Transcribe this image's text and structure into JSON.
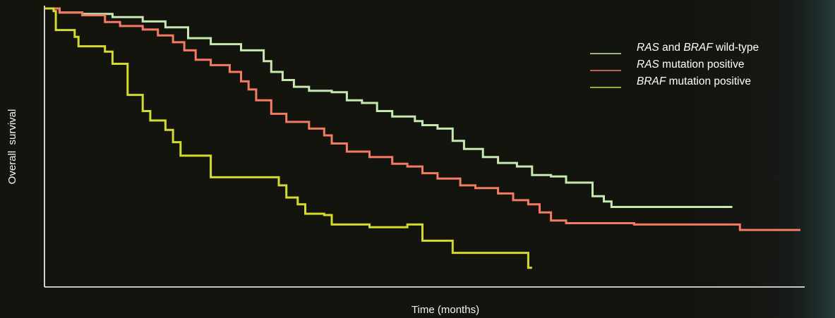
{
  "chart_data": {
    "type": "line",
    "subtype": "kaplan-meier-step",
    "xlabel": "Time (months)",
    "ylabel": "Overall  survival",
    "tick_labels_shown": false,
    "xlim": [
      0,
      1
    ],
    "ylim": [
      0,
      1
    ],
    "grid": false,
    "legend_position": "top-right",
    "series": [
      {
        "name": "RAS and BRAF wild-type",
        "legend_parts": [
          {
            "text": "RAS",
            "italic": true
          },
          {
            "text": " and  ",
            "italic": false
          },
          {
            "text": "BRAF",
            "italic": true
          },
          {
            "text": " wild-type",
            "italic": false
          }
        ],
        "color": "#c5e8b0",
        "points": [
          [
            0.0,
            1.0
          ],
          [
            0.02,
            0.985
          ],
          [
            0.05,
            0.98
          ],
          [
            0.09,
            0.968
          ],
          [
            0.13,
            0.952
          ],
          [
            0.16,
            0.93
          ],
          [
            0.19,
            0.89
          ],
          [
            0.22,
            0.868
          ],
          [
            0.26,
            0.845
          ],
          [
            0.29,
            0.805
          ],
          [
            0.3,
            0.765
          ],
          [
            0.315,
            0.735
          ],
          [
            0.33,
            0.71
          ],
          [
            0.35,
            0.695
          ],
          [
            0.38,
            0.69
          ],
          [
            0.4,
            0.66
          ],
          [
            0.42,
            0.65
          ],
          [
            0.44,
            0.62
          ],
          [
            0.46,
            0.6
          ],
          [
            0.49,
            0.583
          ],
          [
            0.5,
            0.568
          ],
          [
            0.52,
            0.555
          ],
          [
            0.54,
            0.51
          ],
          [
            0.555,
            0.48
          ],
          [
            0.58,
            0.45
          ],
          [
            0.6,
            0.428
          ],
          [
            0.625,
            0.415
          ],
          [
            0.645,
            0.383
          ],
          [
            0.67,
            0.378
          ],
          [
            0.69,
            0.355
          ],
          [
            0.725,
            0.305
          ],
          [
            0.74,
            0.285
          ],
          [
            0.75,
            0.265
          ],
          [
            0.91,
            0.265
          ]
        ]
      },
      {
        "name": "RAS mutation positive",
        "legend_parts": [
          {
            "text": "RAS",
            "italic": true
          },
          {
            "text": " mutation positive",
            "italic": false
          }
        ],
        "color": "#f47a63",
        "points": [
          [
            0.0,
            1.0
          ],
          [
            0.02,
            0.985
          ],
          [
            0.05,
            0.975
          ],
          [
            0.08,
            0.95
          ],
          [
            0.1,
            0.935
          ],
          [
            0.13,
            0.922
          ],
          [
            0.15,
            0.9
          ],
          [
            0.17,
            0.875
          ],
          [
            0.185,
            0.845
          ],
          [
            0.2,
            0.81
          ],
          [
            0.22,
            0.79
          ],
          [
            0.245,
            0.765
          ],
          [
            0.26,
            0.73
          ],
          [
            0.27,
            0.7
          ],
          [
            0.28,
            0.66
          ],
          [
            0.3,
            0.61
          ],
          [
            0.32,
            0.58
          ],
          [
            0.35,
            0.555
          ],
          [
            0.37,
            0.53
          ],
          [
            0.38,
            0.5
          ],
          [
            0.4,
            0.47
          ],
          [
            0.43,
            0.45
          ],
          [
            0.46,
            0.425
          ],
          [
            0.48,
            0.415
          ],
          [
            0.5,
            0.39
          ],
          [
            0.52,
            0.37
          ],
          [
            0.55,
            0.345
          ],
          [
            0.57,
            0.335
          ],
          [
            0.6,
            0.315
          ],
          [
            0.62,
            0.29
          ],
          [
            0.64,
            0.275
          ],
          [
            0.655,
            0.245
          ],
          [
            0.67,
            0.215
          ],
          [
            0.69,
            0.205
          ],
          [
            0.78,
            0.2
          ],
          [
            0.9,
            0.2
          ],
          [
            0.92,
            0.18
          ],
          [
            1.0,
            0.18
          ]
        ]
      },
      {
        "name": "BRAF mutation positive",
        "legend_parts": [
          {
            "text": "BRAF",
            "italic": true
          },
          {
            "text": " mutation  positive",
            "italic": false
          }
        ],
        "color": "#d4d92e",
        "points": [
          [
            0.0,
            1.0
          ],
          [
            0.012,
            0.99
          ],
          [
            0.015,
            0.92
          ],
          [
            0.04,
            0.895
          ],
          [
            0.045,
            0.86
          ],
          [
            0.08,
            0.84
          ],
          [
            0.09,
            0.795
          ],
          [
            0.11,
            0.68
          ],
          [
            0.13,
            0.62
          ],
          [
            0.14,
            0.585
          ],
          [
            0.16,
            0.55
          ],
          [
            0.17,
            0.505
          ],
          [
            0.18,
            0.455
          ],
          [
            0.22,
            0.375
          ],
          [
            0.3,
            0.375
          ],
          [
            0.31,
            0.345
          ],
          [
            0.32,
            0.3
          ],
          [
            0.335,
            0.275
          ],
          [
            0.345,
            0.24
          ],
          [
            0.37,
            0.235
          ],
          [
            0.38,
            0.2
          ],
          [
            0.4,
            0.2
          ],
          [
            0.43,
            0.19
          ],
          [
            0.48,
            0.2
          ],
          [
            0.5,
            0.14
          ],
          [
            0.52,
            0.14
          ],
          [
            0.54,
            0.095
          ],
          [
            0.63,
            0.095
          ],
          [
            0.64,
            0.04
          ],
          [
            0.645,
            0.04
          ]
        ]
      }
    ]
  }
}
